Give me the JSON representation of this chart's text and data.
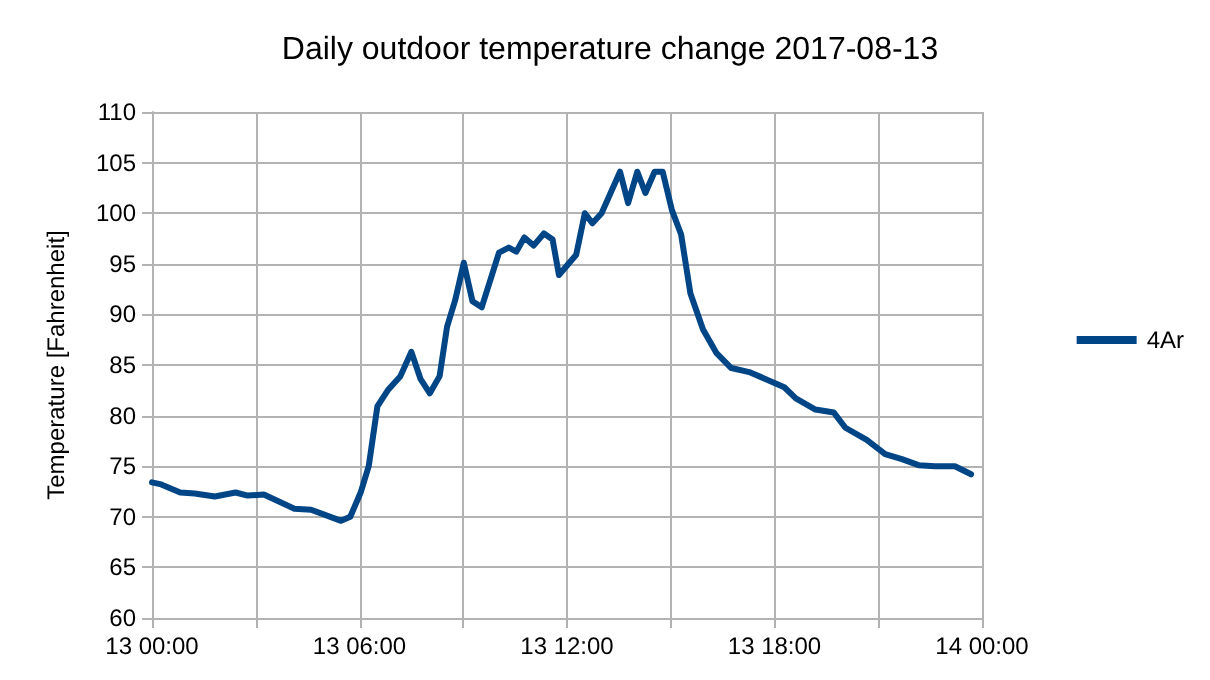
{
  "chart_data": {
    "type": "line",
    "title": "Daily outdoor temperature change 2017-08-13",
    "ylabel": "Temperature [Fahrenheit]",
    "x": [
      "2017-08-13T00:00",
      "2017-08-13T00:16",
      "2017-08-13T00:49",
      "2017-08-13T01:14",
      "2017-08-13T01:49",
      "2017-08-13T02:25",
      "2017-08-13T02:46",
      "2017-08-13T03:14",
      "2017-08-13T04:07",
      "2017-08-13T04:36",
      "2017-08-13T05:28",
      "2017-08-13T05:44",
      "2017-08-13T06:02",
      "2017-08-13T06:16",
      "2017-08-13T06:31",
      "2017-08-13T06:49",
      "2017-08-13T07:11",
      "2017-08-13T07:30",
      "2017-08-13T07:46",
      "2017-08-13T08:02",
      "2017-08-13T08:19",
      "2017-08-13T08:32",
      "2017-08-13T08:46",
      "2017-08-13T09:01",
      "2017-08-13T09:16",
      "2017-08-13T09:32",
      "2017-08-13T10:02",
      "2017-08-13T10:19",
      "2017-08-13T10:32",
      "2017-08-13T10:46",
      "2017-08-13T11:02",
      "2017-08-13T11:20",
      "2017-08-13T11:35",
      "2017-08-13T11:46",
      "2017-08-13T12:16",
      "2017-08-13T12:31",
      "2017-08-13T12:44",
      "2017-08-13T13:00",
      "2017-08-13T13:32",
      "2017-08-13T13:46",
      "2017-08-13T14:02",
      "2017-08-13T14:16",
      "2017-08-13T14:32",
      "2017-08-13T14:46",
      "2017-08-13T15:02",
      "2017-08-13T15:18",
      "2017-08-13T15:34",
      "2017-08-13T15:56",
      "2017-08-13T16:19",
      "2017-08-13T16:45",
      "2017-08-13T17:16",
      "2017-08-13T17:45",
      "2017-08-13T18:17",
      "2017-08-13T18:37",
      "2017-08-13T19:11",
      "2017-08-13T19:43",
      "2017-08-13T20:03",
      "2017-08-13T20:40",
      "2017-08-13T21:12",
      "2017-08-13T21:41",
      "2017-08-13T22:10",
      "2017-08-13T22:38",
      "2017-08-13T23:13",
      "2017-08-13T23:41"
    ],
    "series": [
      {
        "name": "4Ar",
        "color": "#004586",
        "values": [
          73.4,
          73.2,
          72.4,
          72.3,
          72.0,
          72.4,
          72.1,
          72.2,
          70.8,
          70.7,
          69.6,
          70.0,
          72.4,
          75.0,
          80.9,
          82.5,
          83.9,
          86.3,
          83.6,
          82.2,
          83.9,
          88.8,
          91.4,
          95.1,
          91.3,
          90.7,
          96.1,
          96.6,
          96.2,
          97.6,
          96.8,
          98.0,
          97.4,
          93.9,
          95.9,
          100.0,
          99.0,
          100.0,
          104.1,
          101.0,
          104.1,
          102.0,
          104.1,
          104.1,
          100.3,
          97.9,
          92.1,
          88.5,
          86.2,
          84.7,
          84.3,
          83.6,
          82.8,
          81.7,
          80.6,
          80.3,
          78.8,
          77.6,
          76.2,
          75.7,
          75.1,
          75.0,
          75.0,
          74.2
        ]
      }
    ],
    "xlim": [
      "2017-08-13T00:00",
      "2017-08-14T00:00"
    ],
    "xticks": [
      {
        "value": "2017-08-13T00:00",
        "label": "13 00:00"
      },
      {
        "value": "2017-08-13T03:00",
        "label": null
      },
      {
        "value": "2017-08-13T06:00",
        "label": "13 06:00"
      },
      {
        "value": "2017-08-13T09:00",
        "label": null
      },
      {
        "value": "2017-08-13T12:00",
        "label": "13 12:00"
      },
      {
        "value": "2017-08-13T15:00",
        "label": null
      },
      {
        "value": "2017-08-13T18:00",
        "label": "13 18:00"
      },
      {
        "value": "2017-08-13T21:00",
        "label": null
      },
      {
        "value": "2017-08-14T00:00",
        "label": "14 00:00"
      }
    ],
    "ylim": [
      60,
      110
    ],
    "yticks": [
      60,
      65,
      70,
      75,
      80,
      85,
      90,
      95,
      100,
      105,
      110
    ],
    "grid": true,
    "legend": "right",
    "marker": "none",
    "line_style": "solid"
  }
}
